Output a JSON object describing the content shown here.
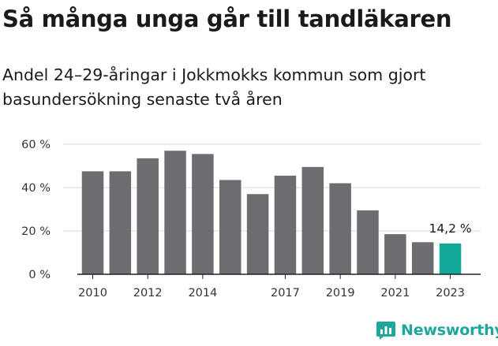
{
  "brand": {
    "name": "Newsworthy",
    "color": "#1ea79b"
  },
  "colors": {
    "bar": "#6d6c70",
    "highlight": "#14a89a",
    "grid": "#d9d9d9",
    "axis": "#222222"
  },
  "chart_data": {
    "type": "bar",
    "title": "Så många unga går till tandläkaren",
    "subtitle": "Andel 24–29-åringar i Jokkmokks kommun som gjort basundersökning senaste två åren",
    "x": [
      2010,
      2011,
      2012,
      2013,
      2014,
      2015,
      2016,
      2017,
      2018,
      2019,
      2020,
      2021,
      2022,
      2023
    ],
    "values": [
      47.5,
      47.5,
      53.5,
      57,
      55.5,
      43.5,
      37,
      45.5,
      49.5,
      42,
      29.5,
      18.5,
      14.8,
      14.2
    ],
    "highlight_index": 13,
    "x_tick_labels": [
      "2010",
      "2012",
      "2014",
      "2017",
      "2019",
      "2021",
      "2023"
    ],
    "y_ticks": [
      0,
      20,
      40,
      60
    ],
    "y_tick_labels": [
      "0 %",
      "20 %",
      "40 %",
      "60 %"
    ],
    "ylim": [
      0,
      60
    ],
    "grid": true,
    "legend": false,
    "annotation": {
      "text": "14,2 %",
      "year": 2023
    }
  }
}
